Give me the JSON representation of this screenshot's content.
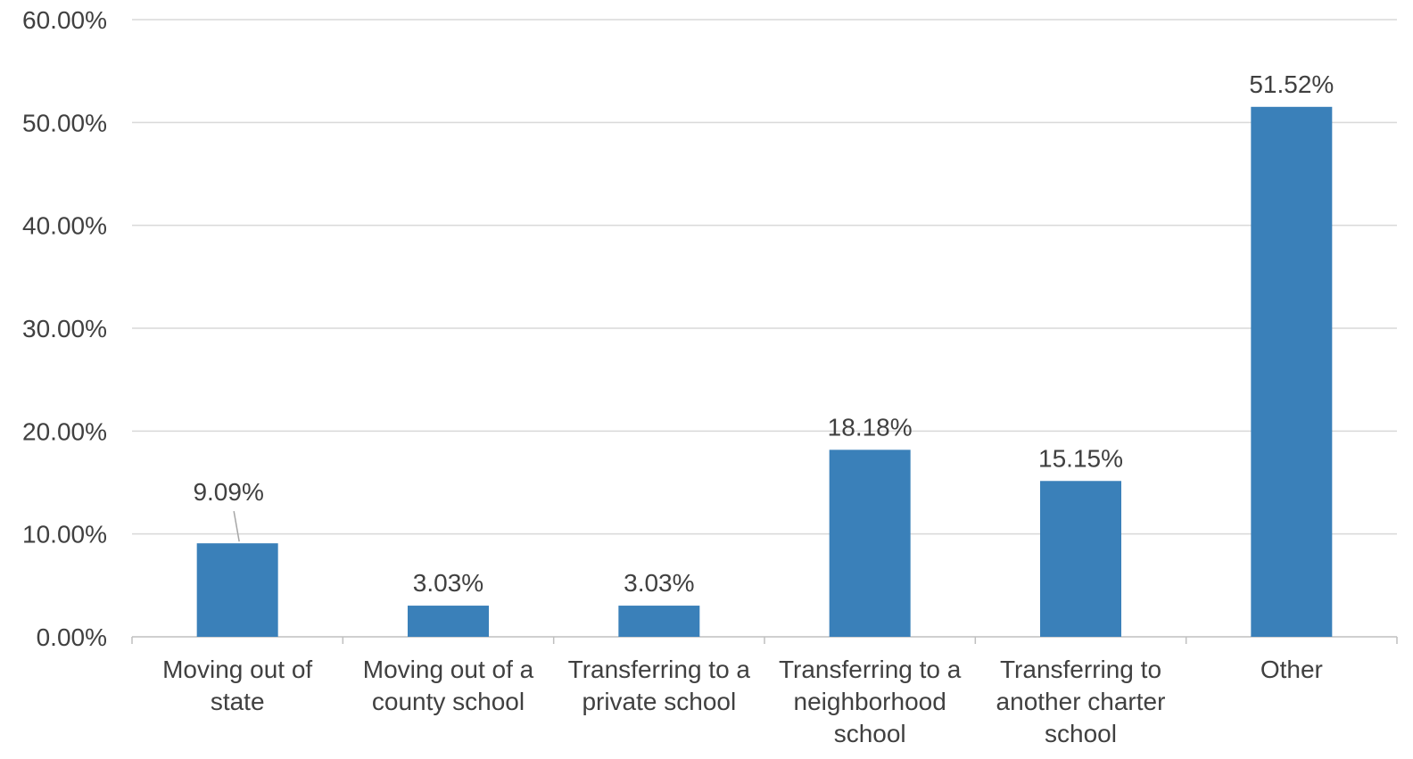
{
  "chart_data": {
    "type": "bar",
    "title": "",
    "xlabel": "",
    "ylabel": "",
    "categories": [
      [
        "Moving out of",
        "state"
      ],
      [
        "Moving out of a",
        "county school"
      ],
      [
        "Transferring to a",
        "private school"
      ],
      [
        "Transferring to a",
        "neighborhood",
        "school"
      ],
      [
        "Transferring to",
        "another charter",
        "school"
      ],
      [
        "Other"
      ]
    ],
    "values": [
      9.09,
      3.03,
      3.03,
      18.18,
      15.15,
      51.52
    ],
    "data_labels": [
      "9.09%",
      "3.03%",
      "3.03%",
      "18.18%",
      "15.15%",
      "51.52%"
    ],
    "ylim": [
      0,
      60
    ],
    "yticks": [
      0,
      10,
      20,
      30,
      40,
      50,
      60
    ],
    "ytick_labels": [
      "0.00%",
      "10.00%",
      "20.00%",
      "30.00%",
      "40.00%",
      "50.00%",
      "60.00%"
    ],
    "grid": true,
    "legend": "none",
    "colors": {
      "bar": "#3a80b9",
      "grid": "#d9d9d9",
      "axis": "#bfbfbf",
      "text": "#404040"
    }
  }
}
